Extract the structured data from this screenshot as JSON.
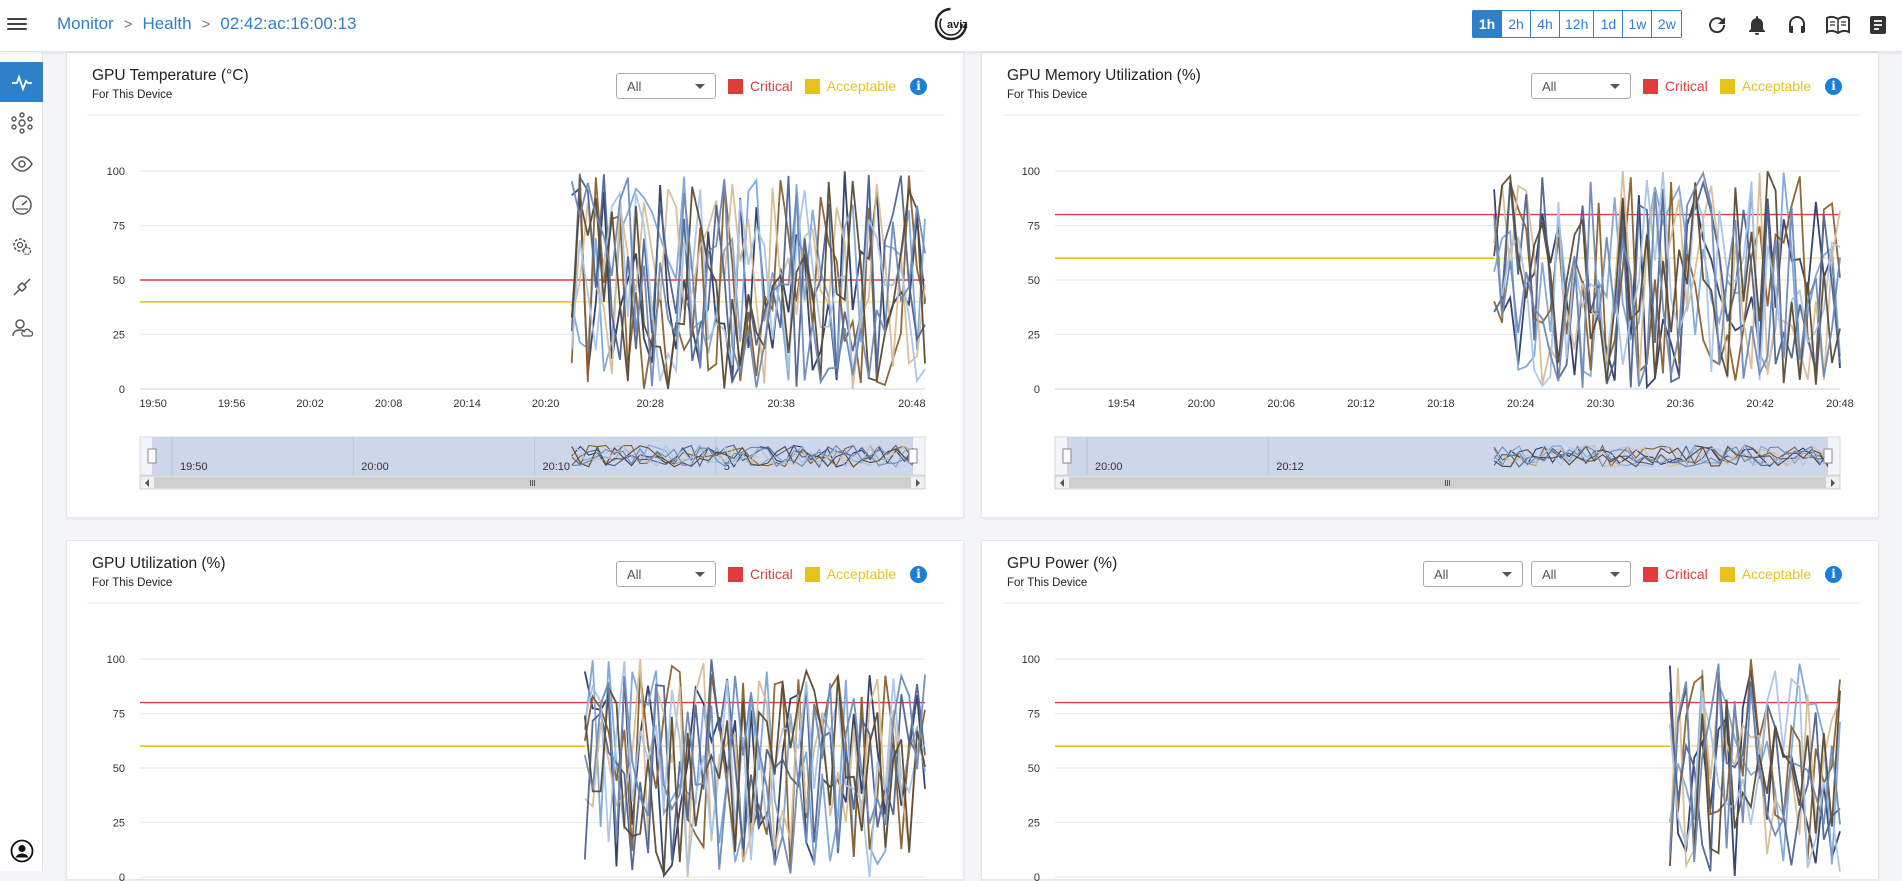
{
  "header": {
    "breadcrumb": [
      "Monitor",
      "Health",
      "02:42:ac:16:00:13"
    ],
    "logo_text": "aviz",
    "time_ranges": [
      "1h",
      "2h",
      "4h",
      "12h",
      "1d",
      "1w",
      "2w"
    ],
    "active_range": "1h",
    "icons": [
      "refresh-icon",
      "bell-icon",
      "headset-icon",
      "book-icon",
      "notes-icon"
    ]
  },
  "sidebar": {
    "items": [
      "pulse-icon",
      "network-icon",
      "eye-icon",
      "gauge-icon",
      "settings-gear-icon",
      "integration-icon",
      "cloud-user-icon"
    ],
    "active": "pulse-icon",
    "bottom_icon": "account-icon"
  },
  "colors": {
    "critical": "#e03c3c",
    "acceptable": "#e6c21a",
    "accent": "#2f80c9",
    "series": [
      "#2b3a67",
      "#7ba6d8",
      "#8a5f2c",
      "#d7bd96",
      "#4d6391",
      "#a8c4e6",
      "#5c4a30",
      "#6b89b8"
    ]
  },
  "panels": [
    {
      "title": "GPU Temperature (°C)",
      "subtitle": "For This Device",
      "filters": [
        "All"
      ],
      "legend": {
        "critical": "Critical",
        "acceptable": "Acceptable"
      }
    },
    {
      "title": "GPU Memory Utilization (%)",
      "subtitle": "For This Device",
      "filters": [
        "All"
      ],
      "legend": {
        "critical": "Critical",
        "acceptable": "Acceptable"
      }
    },
    {
      "title": "GPU Utilization (%)",
      "subtitle": "For This Device",
      "filters": [
        "All"
      ],
      "legend": {
        "critical": "Critical",
        "acceptable": "Acceptable"
      }
    },
    {
      "title": "GPU Power (%)",
      "subtitle": "For This Device",
      "filters": [
        "All",
        "All"
      ],
      "legend": {
        "critical": "Critical",
        "acceptable": "Acceptable"
      }
    }
  ],
  "chart_data": [
    {
      "type": "line",
      "title": "GPU Temperature (°C)",
      "yticks": [
        100,
        75,
        50,
        25,
        0
      ],
      "ylim": [
        0,
        100
      ],
      "xticks": [
        "19:50",
        "19:56",
        "20:02",
        "20:08",
        "20:14",
        "20:20",
        "20:28",
        "20:38",
        "20:48"
      ],
      "xlim": [
        "19:49",
        "20:49"
      ],
      "data_start": "20:22",
      "critical": 50,
      "acceptable": 40,
      "series_count": 8,
      "navigator_labels": [
        "19:50",
        "20:00",
        "20:10",
        "5"
      ],
      "has_navigator": true
    },
    {
      "type": "line",
      "title": "GPU Memory Utilization (%)",
      "yticks": [
        100,
        75,
        50,
        25,
        0
      ],
      "ylim": [
        0,
        100
      ],
      "xticks": [
        "19:54",
        "20:00",
        "20:06",
        "20:12",
        "20:18",
        "20:24",
        "20:30",
        "20:36",
        "20:42",
        "20:48"
      ],
      "xlim": [
        "19:49",
        "20:48"
      ],
      "data_start": "20:22",
      "critical": 80,
      "acceptable": 60,
      "series_count": 8,
      "navigator_labels": [
        "20:00",
        "20:12"
      ],
      "has_navigator": true
    },
    {
      "type": "line",
      "title": "GPU Utilization (%)",
      "yticks": [
        100,
        75,
        50,
        25,
        0
      ],
      "ylim": [
        0,
        100
      ],
      "xticks": [],
      "xlim": [
        "19:49",
        "20:49"
      ],
      "data_start": "20:23",
      "critical": 80,
      "acceptable": 60,
      "series_count": 8,
      "has_navigator": false
    },
    {
      "type": "line",
      "title": "GPU Power (%)",
      "yticks": [
        100,
        75,
        50,
        25,
        0
      ],
      "ylim": [
        0,
        100
      ],
      "xticks": [],
      "xlim": [
        "19:49",
        "20:49"
      ],
      "data_start": "20:36",
      "critical": 80,
      "acceptable": 60,
      "series_count": 8,
      "has_navigator": false
    }
  ]
}
